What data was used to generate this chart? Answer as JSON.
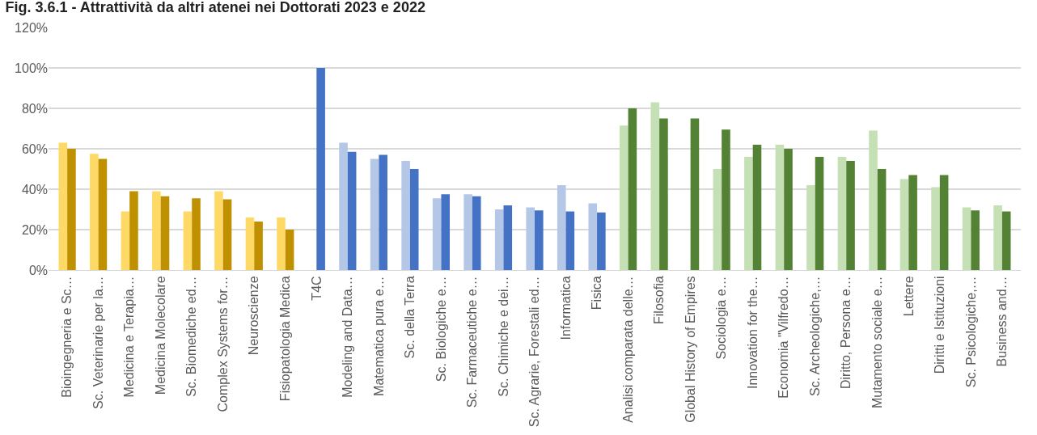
{
  "chart_data": {
    "type": "bar",
    "title": "Fig. 3.6.1 - Attrattività da altri atenei nei Dottorati 2023 e 2022",
    "categories": [
      "Bioingegneria e Sc…",
      "Sc. Veterinarie per la…",
      "Medicina e Terapia…",
      "Medicina Molecolare",
      "Sc. Biomediche ed…",
      "Complex Systems for…",
      "Neuroscienze",
      "Fisiopatologia Medica",
      "T4C",
      "Modeling and Data…",
      "Matematica pura e…",
      "Sc. della Terra",
      "Sc. Biologiche e…",
      "Sc. Farmaceutiche e…",
      "Sc. Chimiche e dei…",
      "Sc. Agrarie, Forestali ed…",
      "Informatica",
      "Fisica",
      "Analisi comparata delle…",
      "Filosofia",
      "Global History of Empires",
      "Sociologia e…",
      "Innovation for the…",
      "Economia \"Vilfredo…",
      "Sc. Archeologiche,…",
      "Diritto, Persona e…",
      "Mutamento sociale e…",
      "Lettere",
      "Diritti e Istituzioni",
      "Sc. Psicologiche,…",
      "Business and…"
    ],
    "series": [
      {
        "colors": [
          "#ffd966",
          "#ffd966",
          "#ffd966",
          "#ffd966",
          "#ffd966",
          "#ffd966",
          "#ffd966",
          "#ffd966",
          "#b4c7e7",
          "#b4c7e7",
          "#b4c7e7",
          "#b4c7e7",
          "#b4c7e7",
          "#b4c7e7",
          "#b4c7e7",
          "#b4c7e7",
          "#b4c7e7",
          "#b4c7e7",
          "#c5e0b4",
          "#c5e0b4",
          "#c5e0b4",
          "#c5e0b4",
          "#c5e0b4",
          "#c5e0b4",
          "#c5e0b4",
          "#c5e0b4",
          "#c5e0b4",
          "#c5e0b4",
          "#c5e0b4",
          "#c5e0b4",
          "#c5e0b4"
        ],
        "values": [
          63,
          57.5,
          29,
          39,
          29,
          39,
          26,
          26,
          null,
          63,
          55,
          54,
          35.5,
          37.5,
          30,
          31,
          42,
          33,
          71.5,
          83,
          null,
          50,
          56,
          62,
          42,
          56,
          69,
          45,
          41,
          31,
          32
        ]
      },
      {
        "colors": [
          "#bf9000",
          "#bf9000",
          "#bf9000",
          "#bf9000",
          "#bf9000",
          "#bf9000",
          "#bf9000",
          "#bf9000",
          "#4472c4",
          "#4472c4",
          "#4472c4",
          "#4472c4",
          "#4472c4",
          "#4472c4",
          "#4472c4",
          "#4472c4",
          "#4472c4",
          "#4472c4",
          "#548235",
          "#548235",
          "#548235",
          "#548235",
          "#548235",
          "#548235",
          "#548235",
          "#548235",
          "#548235",
          "#548235",
          "#548235",
          "#548235",
          "#548235"
        ],
        "values": [
          60,
          55,
          39,
          36.5,
          35.5,
          35,
          24,
          20,
          100,
          58.5,
          57,
          50,
          37.5,
          36.5,
          32,
          29.5,
          29,
          28.5,
          80,
          75,
          75,
          69.5,
          62,
          60,
          56,
          54,
          50,
          47,
          47,
          29.5,
          29
        ]
      }
    ],
    "ylim": [
      0,
      120
    ],
    "yticks": [
      {
        "value": 0,
        "label": "0%"
      },
      {
        "value": 20,
        "label": "20%"
      },
      {
        "value": 40,
        "label": "40%"
      },
      {
        "value": 60,
        "label": "60%"
      },
      {
        "value": 80,
        "label": "80%"
      },
      {
        "value": 100,
        "label": "100%"
      },
      {
        "value": 120,
        "label": "120%"
      }
    ],
    "grid": "y"
  }
}
